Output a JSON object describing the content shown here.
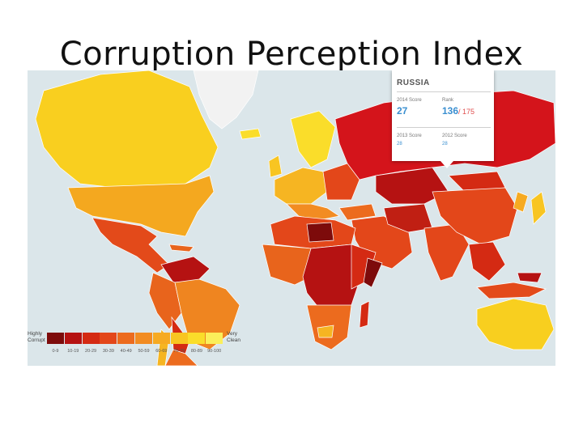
{
  "slide": {
    "title": "Corruption Perception Index"
  },
  "map": {
    "popup": {
      "country": "RUSSIA",
      "score_2014_label": "2014 Score",
      "score_2014": "27",
      "rank_label": "Rank",
      "rank": "136",
      "rank_of": "/ 175",
      "score_2013_label": "2013 Score",
      "score_2013": "28",
      "score_2012_label": "2012 Score",
      "score_2012": "28"
    },
    "legend": {
      "low_label": "Highly Corrupt",
      "high_label": "Very Clean",
      "ranges": [
        "0-9",
        "10-19",
        "20-29",
        "30-39",
        "40-49",
        "50-59",
        "60-69",
        "70-79",
        "80-89",
        "90-100"
      ],
      "colors": [
        "#7d0b0b",
        "#b51212",
        "#d42a13",
        "#e3471a",
        "#ec6b1e",
        "#f28c22",
        "#f6aa22",
        "#f8c522",
        "#fadd2a",
        "#fbef5a"
      ]
    },
    "ocean_color": "#dbe6ea"
  }
}
